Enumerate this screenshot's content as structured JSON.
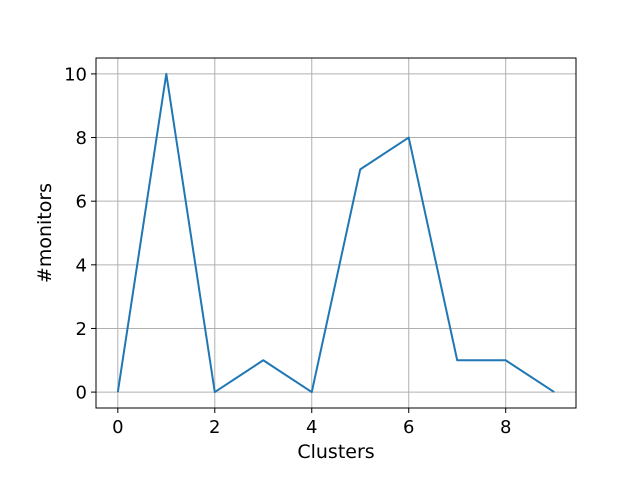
{
  "chart_data": {
    "type": "line",
    "title": "",
    "xlabel": "Clusters",
    "ylabel": "#monitors",
    "x": [
      0,
      1,
      2,
      3,
      4,
      5,
      6,
      7,
      8,
      9
    ],
    "series": [
      {
        "values": [
          0,
          10,
          0,
          1,
          0,
          7,
          8,
          1,
          1,
          0
        ]
      }
    ],
    "xlim": [
      -0.45,
      9.45
    ],
    "ylim": [
      -0.5,
      10.5
    ],
    "xticks": [
      0,
      2,
      4,
      6,
      8
    ],
    "yticks": [
      0,
      2,
      4,
      6,
      8,
      10
    ],
    "xtick_labels": [
      "0",
      "2",
      "4",
      "6",
      "8"
    ],
    "ytick_labels": [
      "0",
      "2",
      "4",
      "6",
      "8",
      "10"
    ],
    "grid": true,
    "line_color": "#1f77b4",
    "grid_color": "#b0b0b0"
  }
}
